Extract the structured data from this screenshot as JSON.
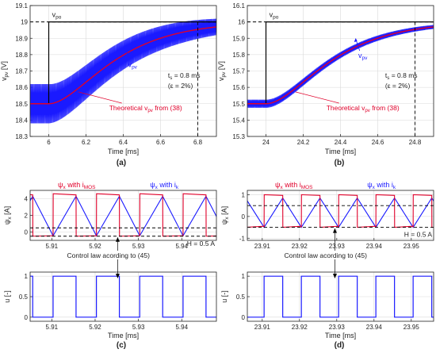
{
  "chart_data": [
    {
      "id": "a",
      "type": "line",
      "panel_label": "(a)",
      "xlabel": "Time [ms]",
      "ylabel": "v_pv [V]",
      "xlim": [
        5.9,
        6.9
      ],
      "ylim": [
        18.3,
        19.1
      ],
      "xticks": [
        6,
        6.2,
        6.4,
        6.6,
        6.8
      ],
      "yticks": [
        18.3,
        18.4,
        18.5,
        18.6,
        18.7,
        18.8,
        18.9,
        19,
        19.1
      ],
      "grid": true,
      "reference": {
        "name": "v_po",
        "t_step": 6.0,
        "v_low": 18.5,
        "v_high": 19.0
      },
      "theory": {
        "t0": 6.0,
        "t_end": 6.8,
        "v0": 18.5,
        "v1": 19.0
      },
      "ripple_amplitude": {
        "start": 0.12,
        "end": 0.05
      },
      "settling_marker_x": 6.8,
      "annotations": {
        "vpo": "v_po",
        "vpv": "v_pv",
        "ts": "t_s = 0.8 ms",
        "eps": "(ε = 2%)",
        "theory": "Theoretical v_pv from (38)"
      }
    },
    {
      "id": "b",
      "type": "line",
      "panel_label": "(b)",
      "xlabel": "Time [ms]",
      "ylabel": "v_pv [V]",
      "xlim": [
        23.9,
        24.9
      ],
      "ylim": [
        15.3,
        16.1
      ],
      "xticks": [
        24,
        24.2,
        24.4,
        24.6,
        24.8
      ],
      "yticks": [
        15.3,
        15.4,
        15.5,
        15.6,
        15.7,
        15.8,
        15.9,
        16,
        16.1
      ],
      "grid": true,
      "reference": {
        "name": "v_po",
        "t_step": 24.0,
        "v_low": 15.5,
        "v_high": 16.0
      },
      "theory": {
        "t0": 24.0,
        "t_end": 24.8,
        "v0": 15.5,
        "v1": 16.0
      },
      "ripple_amplitude": {
        "start": 0.025,
        "end": 0.012
      },
      "settling_marker_x": 24.8,
      "annotations": {
        "vpo": "v_po",
        "vpv": "v_pv",
        "ts": "t_s = 0.8 ms",
        "eps": "(ε = 2%)",
        "theory": "Theoretical v_pv from (38)"
      }
    },
    {
      "id": "c",
      "type": "line",
      "panel_label": "(c)",
      "ylabel_top": "ψ_x [A]",
      "ylabel_bottom": "u [-]",
      "xlabel": "Time [ms]",
      "xlim": [
        5.905,
        5.948
      ],
      "xticks": [
        5.91,
        5.92,
        5.93,
        5.94
      ],
      "top_ylim": [
        -1,
        5
      ],
      "top_yticks": [
        0,
        2,
        4
      ],
      "bottom_ylim": [
        -0.1,
        1.1
      ],
      "bottom_yticks": [
        0,
        0.5,
        1
      ],
      "hysteresis_band": [
        -0.5,
        0.5
      ],
      "switch_period": 0.01,
      "duty": 0.53,
      "phase_offset": 0.0003,
      "psi_mos": {
        "high": 4.6,
        "low": -0.5
      },
      "psi_k": {
        "high": 4.3,
        "low": -0.45
      },
      "grid": true,
      "annotations": {
        "mos_legend": "ψ_x with i_MOS",
        "k_legend": "ψ_x with i_k",
        "hyst": "H = 0.5 A",
        "control": "Control law acording to (45)"
      }
    },
    {
      "id": "d",
      "type": "line",
      "panel_label": "(d)",
      "ylabel_top": "ψ_x [A]",
      "ylabel_bottom": "u [-]",
      "xlabel": "Time [ms]",
      "xlim": [
        23.906,
        23.956
      ],
      "xticks": [
        23.91,
        23.92,
        23.93,
        23.94,
        23.95
      ],
      "top_ylim": [
        -1.1,
        1.2
      ],
      "top_yticks": [
        -1,
        0,
        1
      ],
      "bottom_ylim": [
        -0.1,
        1.1
      ],
      "bottom_yticks": [
        0,
        0.5,
        1
      ],
      "hysteresis_band": [
        -0.5,
        0.5
      ],
      "switch_period": 0.01,
      "duty": 0.5,
      "phase_offset": 0.0005,
      "psi_mos": {
        "high": 1.0,
        "low": -0.5
      },
      "psi_k": {
        "high": 0.85,
        "low": -0.5
      },
      "grid": true,
      "annotations": {
        "mos_legend": "ψ_x with i_MOS",
        "k_legend": "ψ_x with i_k",
        "hyst": "H = 0.5 A",
        "control": "Control law acording to (45)"
      }
    }
  ],
  "colors": {
    "blue": "#1a1aff",
    "red": "#e0002a",
    "black": "#000000",
    "grid": "#d9d9d9"
  }
}
